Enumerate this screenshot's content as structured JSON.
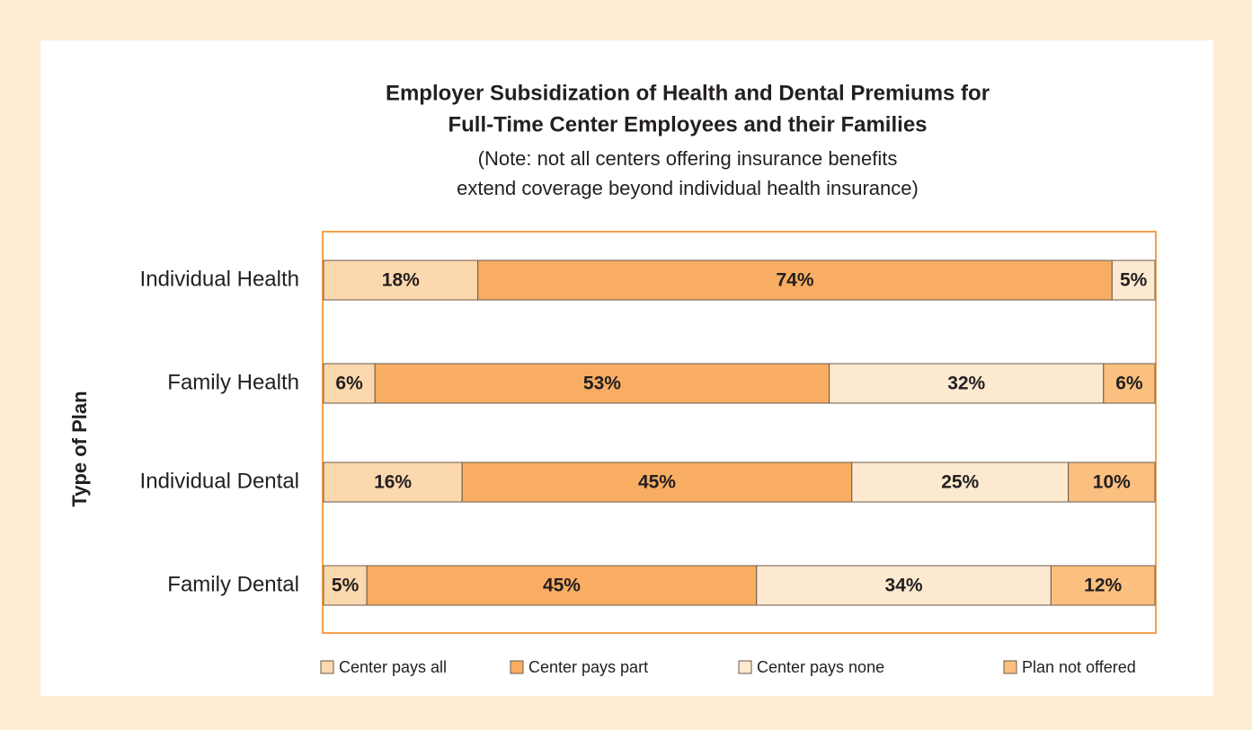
{
  "chart_data": {
    "type": "bar",
    "orientation": "horizontal",
    "stacked": true,
    "title": [
      "Employer Subsidization of Health and Dental Premiums for",
      "Full-Time Center Employees and their Families"
    ],
    "subtitle": [
      "(Note: not all centers offering insurance benefits",
      "extend coverage beyond individual health insurance)"
    ],
    "y_label": "Type of Plan",
    "categories": [
      "Individual Health",
      "Family Health",
      "Individual Dental",
      "Family Dental"
    ],
    "series": [
      {
        "name": "Center pays all",
        "color": "#fcd8ae",
        "values": [
          18,
          6,
          16,
          5
        ],
        "value_labels": [
          "18%",
          "6%",
          "16%",
          "5%"
        ]
      },
      {
        "name": "Center pays part",
        "color": "#f8ad63",
        "values": [
          74,
          53,
          45,
          45
        ],
        "value_labels": [
          "74%",
          "53%",
          "45%",
          "45%"
        ]
      },
      {
        "name": "Center pays none",
        "color": "#fde9d0",
        "values": [
          5,
          32,
          25,
          34
        ],
        "value_labels": [
          "5%",
          "32%",
          "25%",
          "34%"
        ]
      },
      {
        "name": "Plan not offered",
        "color": "#fbc07f",
        "values": [
          null,
          6,
          10,
          12
        ],
        "value_labels": [
          null,
          "6%",
          "10%",
          "12%"
        ]
      }
    ]
  }
}
